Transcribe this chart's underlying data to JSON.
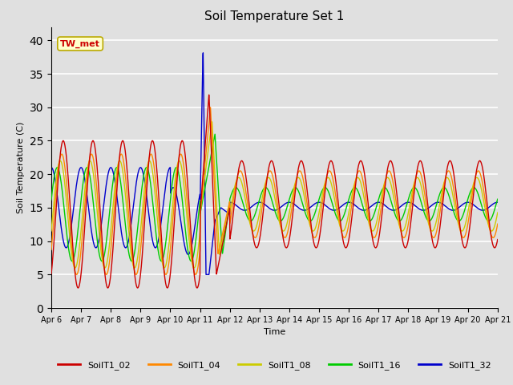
{
  "title": "Soil Temperature Set 1",
  "xlabel": "Time",
  "ylabel": "Soil Temperature (C)",
  "ylim": [
    0,
    42
  ],
  "yticks": [
    0,
    5,
    10,
    15,
    20,
    25,
    30,
    35,
    40
  ],
  "series_colors": {
    "SoilT1_02": "#cc0000",
    "SoilT1_04": "#ff8800",
    "SoilT1_08": "#cccc00",
    "SoilT1_16": "#00cc00",
    "SoilT1_32": "#0000cc"
  },
  "annotation_text": "TW_met",
  "background_color": "#e0e0e0",
  "xtick_labels": [
    "Apr 6",
    "Apr 7",
    "Apr 8",
    "Apr 9",
    "Apr 10",
    "Apr 11",
    "Apr 12",
    "Apr 13",
    "Apr 14",
    "Apr 15",
    "Apr 16",
    "Apr 17",
    "Apr 18",
    "Apr 19",
    "Apr 20",
    "Apr 21"
  ],
  "linewidth": 1.0,
  "grid_color": "#ffffff",
  "title_fontsize": 11,
  "label_fontsize": 8,
  "tick_fontsize": 7
}
